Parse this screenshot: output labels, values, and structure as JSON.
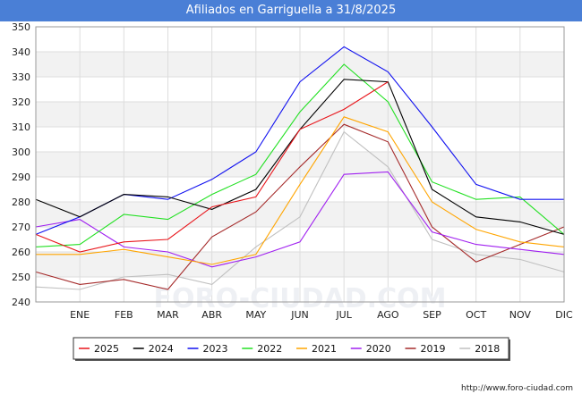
{
  "chart_data": {
    "type": "line",
    "title": "Afiliados en Garriguella a 31/8/2025",
    "categories": [
      "",
      "ENE",
      "FEB",
      "MAR",
      "ABR",
      "MAY",
      "JUN",
      "JUL",
      "AGO",
      "SEP",
      "OCT",
      "NOV",
      "DIC"
    ],
    "ylim": [
      240,
      350
    ],
    "yticks": [
      240,
      250,
      260,
      270,
      280,
      290,
      300,
      310,
      320,
      330,
      340,
      350
    ],
    "grid": true,
    "legend_position": "bottom",
    "series": [
      {
        "name": "2025",
        "color": "#e8141a",
        "values": [
          267,
          260,
          264,
          265,
          278,
          282,
          309,
          317,
          328,
          null,
          null,
          null,
          null
        ]
      },
      {
        "name": "2024",
        "color": "#000000",
        "values": [
          281,
          274,
          283,
          282,
          277,
          285,
          309,
          329,
          328,
          285,
          274,
          272,
          267
        ]
      },
      {
        "name": "2023",
        "color": "#1010f0",
        "values": [
          267,
          274,
          283,
          281,
          289,
          300,
          328,
          342,
          332,
          310,
          287,
          281,
          281
        ]
      },
      {
        "name": "2022",
        "color": "#22e022",
        "values": [
          262,
          263,
          275,
          273,
          283,
          291,
          316,
          335,
          320,
          288,
          281,
          282,
          267
        ]
      },
      {
        "name": "2021",
        "color": "#ffa500",
        "values": [
          259,
          259,
          261,
          258,
          255,
          259,
          287,
          314,
          308,
          280,
          269,
          264,
          262
        ]
      },
      {
        "name": "2020",
        "color": "#a020f0",
        "values": [
          270,
          273,
          262,
          260,
          254,
          258,
          264,
          291,
          292,
          268,
          263,
          261,
          259
        ]
      },
      {
        "name": "2019",
        "color": "#a52a2a",
        "values": [
          252,
          247,
          249,
          245,
          266,
          276,
          294,
          311,
          304,
          270,
          256,
          263,
          270
        ]
      },
      {
        "name": "2018",
        "color": "#c0c0c0",
        "values": [
          246,
          245,
          250,
          251,
          247,
          262,
          274,
          308,
          294,
          265,
          259,
          257,
          252
        ]
      }
    ]
  },
  "footer": {
    "url": "http://www.foro-ciudad.com"
  },
  "watermark": "FORO-CIUDAD.COM"
}
